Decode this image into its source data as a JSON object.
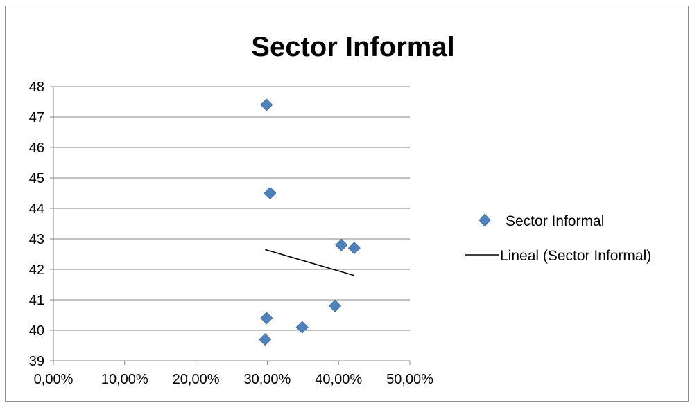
{
  "chart_data": {
    "type": "scatter",
    "title": "Sector Informal",
    "xlabel": "",
    "ylabel": "",
    "xlim": [
      0,
      0.5
    ],
    "ylim": [
      39,
      48
    ],
    "x_tick_values": [
      0,
      0.1,
      0.2,
      0.3,
      0.4,
      0.5
    ],
    "x_tick_labels": [
      "0,00%",
      "10,00%",
      "20,00%",
      "30,00%",
      "40,00%",
      "50,00%"
    ],
    "y_tick_values": [
      39,
      40,
      41,
      42,
      43,
      44,
      45,
      46,
      47,
      48
    ],
    "y_tick_labels": [
      "39",
      "40",
      "41",
      "42",
      "43",
      "44",
      "45",
      "46",
      "47",
      "48"
    ],
    "grid": "horizontal",
    "legend_position": "right",
    "series": [
      {
        "name": "Sector Informal",
        "marker": "diamond",
        "color": "#4f81bd",
        "points": [
          {
            "x": 0.299,
            "y": 47.4
          },
          {
            "x": 0.304,
            "y": 44.5
          },
          {
            "x": 0.299,
            "y": 40.4
          },
          {
            "x": 0.297,
            "y": 39.7
          },
          {
            "x": 0.349,
            "y": 40.1
          },
          {
            "x": 0.395,
            "y": 40.8
          },
          {
            "x": 0.404,
            "y": 42.8
          },
          {
            "x": 0.422,
            "y": 42.7
          }
        ]
      },
      {
        "name": "Lineal (Sector Informal)",
        "type": "trendline",
        "color": "#000000",
        "points": [
          {
            "x": 0.297,
            "y": 42.65
          },
          {
            "x": 0.422,
            "y": 41.8
          }
        ]
      }
    ]
  }
}
